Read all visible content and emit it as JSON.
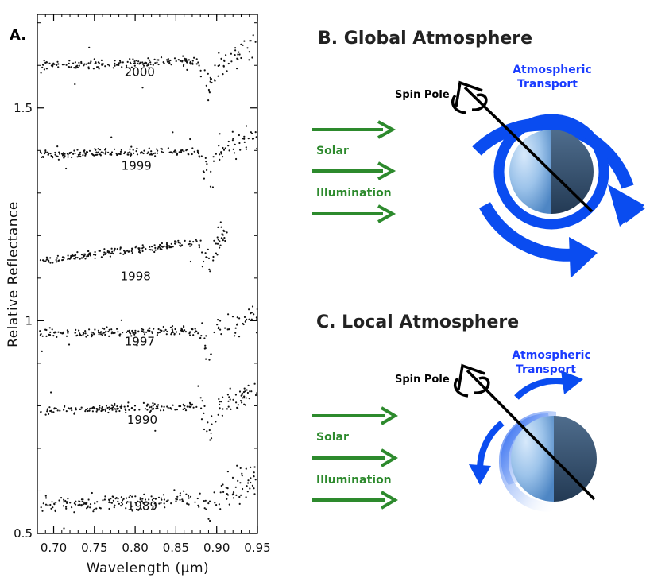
{
  "panel_a": {
    "label": "A.",
    "chart_data": {
      "type": "scatter",
      "xlabel": "Wavelength (μm)",
      "ylabel": "Relative Reflectance",
      "xlim": [
        0.68,
        0.95
      ],
      "ylim": [
        0.5,
        1.72
      ],
      "x_ticks": [
        "0.70",
        "0.75",
        "0.80",
        "0.85",
        "0.90",
        "0.95"
      ],
      "y_ticks": [
        "0.5",
        "1",
        "1.5"
      ],
      "series": [
        {
          "name": "2000",
          "base": 1.6,
          "slope": 0.1,
          "dip": 0.06
        },
        {
          "name": "1999",
          "base": 1.39,
          "slope": 0.1,
          "dip": 0.06
        },
        {
          "name": "1998",
          "base": 1.14,
          "slope": 0.38,
          "dip": 0.05
        },
        {
          "name": "1997",
          "base": 0.97,
          "slope": 0.09,
          "dip": 0.05
        },
        {
          "name": "1990",
          "base": 0.79,
          "slope": 0.1,
          "dip": 0.05
        },
        {
          "name": "1989",
          "base": 0.57,
          "slope": 0.14,
          "dip": 0.03
        }
      ]
    }
  },
  "panel_b": {
    "title": "B. Global Atmosphere",
    "spin_pole": "Spin Pole",
    "transport_line1": "Atmospheric",
    "transport_line2": "Transport",
    "solar": "Solar",
    "illumination": "Illumination"
  },
  "panel_c": {
    "title": "C. Local Atmosphere",
    "spin_pole": "Spin Pole",
    "transport_line1": "Atmospheric",
    "transport_line2": "Transport",
    "solar": "Solar",
    "illumination": "Illumination"
  },
  "colors": {
    "arrow_green": "#2d8a2d",
    "transport_blue": "#0a4cf0",
    "sphere_light": "#9cc3ea",
    "sphere_dark": "#3b5877"
  }
}
